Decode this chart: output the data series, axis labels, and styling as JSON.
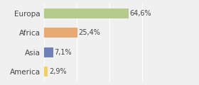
{
  "categories": [
    "Europa",
    "Africa",
    "Asia",
    "America"
  ],
  "values": [
    64.6,
    25.4,
    7.1,
    2.9
  ],
  "labels": [
    "64,6%",
    "25,4%",
    "7,1%",
    "2,9%"
  ],
  "bar_colors": [
    "#b5ca8d",
    "#e8aa72",
    "#7080bb",
    "#f0d060"
  ],
  "background_color": "#f0f0f0",
  "xlim": [
    0,
    100
  ],
  "figsize": [
    2.8,
    1.2
  ],
  "dpi": 100,
  "bar_height": 0.5,
  "label_fontsize": 7.0,
  "tick_fontsize": 7.5
}
